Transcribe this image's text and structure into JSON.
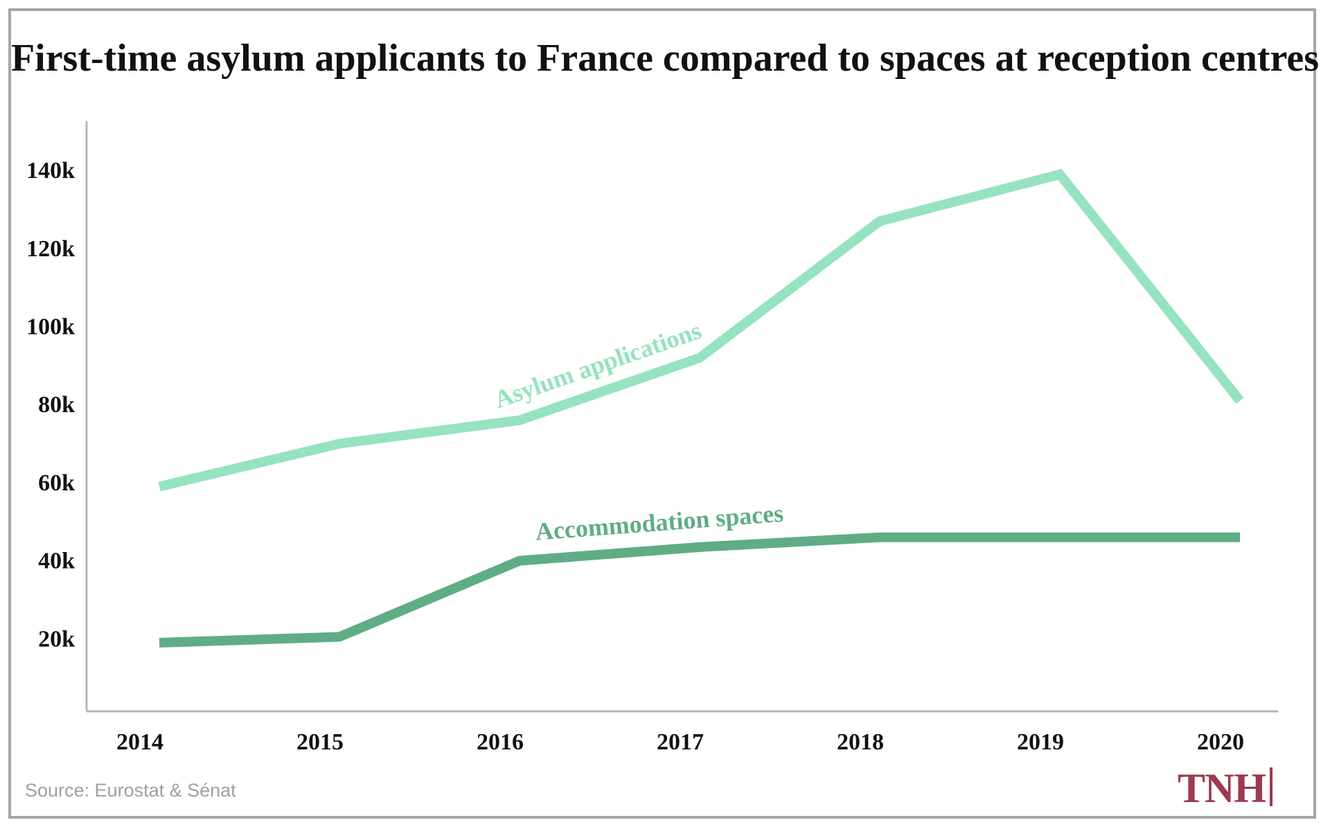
{
  "title": "First-time asylum applicants to France compared to spaces at reception centres",
  "source": "Source: Eurostat & Sénat",
  "logo": "TNH",
  "colors": {
    "asylum": "#96e3bf",
    "accommodation": "#5fad85",
    "axis": "#b5b5b5",
    "frame": "#a6a6a6",
    "logo": "#9c3a4f"
  },
  "chart_data": {
    "type": "line",
    "title": "First-time asylum applicants to France compared to spaces at reception centres",
    "xlabel": "",
    "ylabel": "",
    "categories": [
      "2014",
      "2015",
      "2016",
      "2017",
      "2018",
      "2019",
      "2020"
    ],
    "y_ticks": [
      {
        "value": 20000,
        "label": "20k"
      },
      {
        "value": 40000,
        "label": "40k"
      },
      {
        "value": 60000,
        "label": "60k"
      },
      {
        "value": 80000,
        "label": "80k"
      },
      {
        "value": 100000,
        "label": "100k"
      },
      {
        "value": 120000,
        "label": "120k"
      },
      {
        "value": 140000,
        "label": "140k"
      }
    ],
    "ylim": [
      0,
      150000
    ],
    "grid": false,
    "legend": "inline labels on lines",
    "series": [
      {
        "name": "Asylum applications",
        "values": [
          59000,
          70000,
          76000,
          92000,
          127000,
          139000,
          81000
        ]
      },
      {
        "name": "Accommodation spaces",
        "values": [
          19000,
          20500,
          40000,
          43500,
          46000,
          46000,
          46000
        ]
      }
    ]
  }
}
